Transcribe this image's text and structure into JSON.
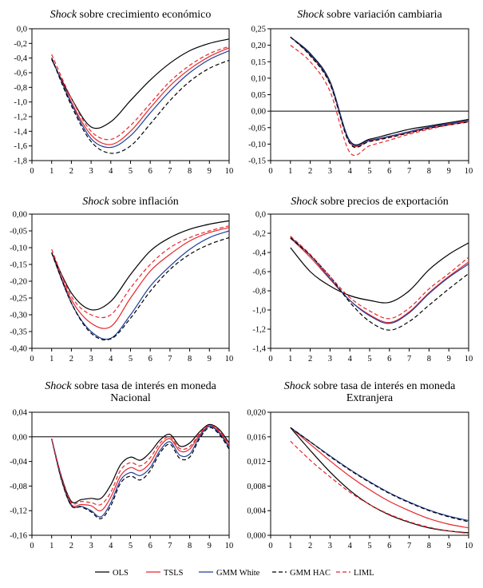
{
  "chart_data": [
    {
      "type": "line",
      "title_italic": "Shock",
      "title_rest": " sobre crecimiento económico",
      "title_line2": "",
      "x": [
        1,
        2,
        3,
        4,
        5,
        6,
        7,
        8,
        9,
        10
      ],
      "xticks": [
        "0",
        "1",
        "2",
        "3",
        "4",
        "5",
        "6",
        "7",
        "8",
        "9",
        "10"
      ],
      "xlim": [
        0,
        10
      ],
      "ylim": [
        -1.8,
        0.0
      ],
      "yticks": [
        "0,0",
        "-0,2",
        "-0,4",
        "-0,6",
        "-0,8",
        "-1,0",
        "-1,2",
        "-1,4",
        "-1,6",
        "-1,8"
      ],
      "ytick_values": [
        0,
        -0.2,
        -0.4,
        -0.6,
        -0.8,
        -1.0,
        -1.2,
        -1.4,
        -1.6,
        -1.8
      ],
      "zero_line": false,
      "series": [
        {
          "name": "OLS",
          "values": [
            -0.42,
            -0.95,
            -1.34,
            -1.27,
            -0.98,
            -0.7,
            -0.47,
            -0.3,
            -0.2,
            -0.14
          ]
        },
        {
          "name": "TSLS",
          "values": [
            -0.4,
            -1.0,
            -1.45,
            -1.58,
            -1.4,
            -1.08,
            -0.78,
            -0.55,
            -0.38,
            -0.26
          ]
        },
        {
          "name": "GMM White",
          "values": [
            -0.4,
            -1.02,
            -1.5,
            -1.62,
            -1.46,
            -1.15,
            -0.85,
            -0.6,
            -0.42,
            -0.3
          ]
        },
        {
          "name": "GMM HAC",
          "values": [
            -0.4,
            -1.05,
            -1.54,
            -1.7,
            -1.6,
            -1.3,
            -0.98,
            -0.72,
            -0.54,
            -0.43
          ]
        },
        {
          "name": "LIML",
          "values": [
            -0.35,
            -0.95,
            -1.4,
            -1.51,
            -1.32,
            -1.02,
            -0.72,
            -0.5,
            -0.34,
            -0.24
          ]
        }
      ]
    },
    {
      "type": "line",
      "title_italic": "Shock",
      "title_rest": " sobre variación cambiaria",
      "title_line2": "",
      "x": [
        1,
        2,
        3,
        4,
        5,
        6,
        7,
        8,
        9,
        10
      ],
      "xticks": [
        "0",
        "1",
        "2",
        "3",
        "4",
        "5",
        "6",
        "7",
        "8",
        "9",
        "10"
      ],
      "xlim": [
        0,
        10
      ],
      "ylim": [
        -0.15,
        0.25
      ],
      "yticks": [
        "0,25",
        "0,20",
        "0,15",
        "0,10",
        "0,05",
        "0,00",
        "-0,05",
        "-0,10",
        "-0,15"
      ],
      "ytick_values": [
        0.25,
        0.2,
        0.15,
        0.1,
        0.05,
        0,
        -0.05,
        -0.1,
        -0.15
      ],
      "zero_line": true,
      "series": [
        {
          "name": "OLS",
          "values": [
            0.225,
            0.175,
            0.09,
            -0.09,
            -0.085,
            -0.07,
            -0.055,
            -0.045,
            -0.035,
            -0.025
          ]
        },
        {
          "name": "TSLS",
          "values": [
            0.225,
            0.17,
            0.085,
            -0.095,
            -0.09,
            -0.078,
            -0.065,
            -0.05,
            -0.04,
            -0.03
          ]
        },
        {
          "name": "GMM White",
          "values": [
            0.225,
            0.172,
            0.087,
            -0.092,
            -0.088,
            -0.076,
            -0.062,
            -0.048,
            -0.038,
            -0.028
          ]
        },
        {
          "name": "GMM HAC",
          "values": [
            0.225,
            0.168,
            0.082,
            -0.098,
            -0.092,
            -0.08,
            -0.066,
            -0.052,
            -0.042,
            -0.033
          ]
        },
        {
          "name": "LIML",
          "values": [
            0.2,
            0.15,
            0.06,
            -0.125,
            -0.105,
            -0.088,
            -0.07,
            -0.055,
            -0.042,
            -0.032
          ]
        }
      ]
    },
    {
      "type": "line",
      "title_italic": "Shock",
      "title_rest": " sobre inflación",
      "title_line2": "",
      "x": [
        1,
        2,
        3,
        4,
        5,
        6,
        7,
        8,
        9,
        10
      ],
      "xticks": [
        "0",
        "1",
        "2",
        "3",
        "4",
        "5",
        "6",
        "7",
        "8",
        "9",
        "10"
      ],
      "xlim": [
        0,
        10
      ],
      "ylim": [
        -0.4,
        0.0
      ],
      "yticks": [
        "0,00",
        "-0,05",
        "-0,10",
        "-0,15",
        "-0,20",
        "-0,25",
        "-0,30",
        "-0,35",
        "-0,40"
      ],
      "ytick_values": [
        0,
        -0.05,
        -0.1,
        -0.15,
        -0.2,
        -0.25,
        -0.3,
        -0.35,
        -0.4
      ],
      "zero_line": false,
      "series": [
        {
          "name": "OLS",
          "values": [
            -0.115,
            -0.235,
            -0.285,
            -0.26,
            -0.18,
            -0.11,
            -0.07,
            -0.045,
            -0.03,
            -0.02
          ]
        },
        {
          "name": "TSLS",
          "values": [
            -0.115,
            -0.255,
            -0.325,
            -0.335,
            -0.25,
            -0.17,
            -0.12,
            -0.08,
            -0.055,
            -0.04
          ]
        },
        {
          "name": "GMM White",
          "values": [
            -0.115,
            -0.265,
            -0.35,
            -0.37,
            -0.3,
            -0.215,
            -0.155,
            -0.105,
            -0.07,
            -0.05
          ]
        },
        {
          "name": "GMM HAC",
          "values": [
            -0.115,
            -0.265,
            -0.355,
            -0.372,
            -0.31,
            -0.23,
            -0.165,
            -0.12,
            -0.09,
            -0.07
          ]
        },
        {
          "name": "LIML",
          "values": [
            -0.105,
            -0.245,
            -0.3,
            -0.3,
            -0.22,
            -0.15,
            -0.1,
            -0.07,
            -0.05,
            -0.035
          ]
        }
      ]
    },
    {
      "type": "line",
      "title_italic": "Shock",
      "title_rest": " sobre precios de exportación",
      "title_line2": "",
      "x": [
        1,
        2,
        3,
        4,
        5,
        6,
        7,
        8,
        9,
        10
      ],
      "xticks": [
        "0",
        "1",
        "2",
        "3",
        "4",
        "5",
        "6",
        "7",
        "8",
        "9",
        "10"
      ],
      "xlim": [
        0,
        10
      ],
      "ylim": [
        -1.4,
        0.0
      ],
      "yticks": [
        "0,0",
        "-0,2",
        "-0,4",
        "-0,6",
        "-0,8",
        "-1,0",
        "-1,2",
        "-1,4"
      ],
      "ytick_values": [
        0,
        -0.2,
        -0.4,
        -0.6,
        -0.8,
        -1.0,
        -1.2,
        -1.4
      ],
      "zero_line": false,
      "series": [
        {
          "name": "OLS",
          "values": [
            -0.35,
            -0.6,
            -0.75,
            -0.85,
            -0.9,
            -0.92,
            -0.8,
            -0.58,
            -0.42,
            -0.3
          ]
        },
        {
          "name": "TSLS",
          "values": [
            -0.25,
            -0.45,
            -0.68,
            -0.9,
            -1.05,
            -1.13,
            -1.02,
            -0.82,
            -0.65,
            -0.5
          ]
        },
        {
          "name": "GMM White",
          "values": [
            -0.24,
            -0.43,
            -0.67,
            -0.9,
            -1.06,
            -1.14,
            -1.03,
            -0.83,
            -0.66,
            -0.52
          ]
        },
        {
          "name": "GMM HAC",
          "values": [
            -0.25,
            -0.43,
            -0.65,
            -0.92,
            -1.12,
            -1.21,
            -1.12,
            -0.95,
            -0.78,
            -0.62
          ]
        },
        {
          "name": "LIML",
          "values": [
            -0.23,
            -0.42,
            -0.65,
            -0.87,
            -1.01,
            -1.09,
            -0.98,
            -0.78,
            -0.62,
            -0.45
          ]
        }
      ]
    },
    {
      "type": "line",
      "title_italic": "Shock",
      "title_rest": " sobre tasa de interés en moneda",
      "title_line2": "Nacional",
      "x": [
        1,
        1.5,
        2,
        2.5,
        3,
        3.5,
        4,
        4.5,
        5,
        5.5,
        6,
        6.5,
        7,
        7.5,
        8,
        8.5,
        9,
        9.5,
        10
      ],
      "xticks": [
        "0",
        "1",
        "2",
        "3",
        "4",
        "5",
        "6",
        "7",
        "8",
        "9",
        "10"
      ],
      "xlim": [
        0,
        10
      ],
      "ylim": [
        -0.16,
        0.04
      ],
      "yticks": [
        "0,04",
        "0,00",
        "-0,04",
        "-0,08",
        "-0,12",
        "-0,16"
      ],
      "ytick_values": [
        0.04,
        0,
        -0.04,
        -0.08,
        -0.12,
        -0.16
      ],
      "zero_line": true,
      "series": [
        {
          "name": "OLS",
          "values": [
            -0.003,
            -0.065,
            -0.105,
            -0.102,
            -0.1,
            -0.1,
            -0.078,
            -0.045,
            -0.033,
            -0.038,
            -0.025,
            -0.005,
            0.004,
            -0.015,
            -0.01,
            0.008,
            0.02,
            0.012,
            -0.01
          ]
        },
        {
          "name": "TSLS",
          "values": [
            -0.003,
            -0.068,
            -0.11,
            -0.11,
            -0.112,
            -0.12,
            -0.098,
            -0.063,
            -0.05,
            -0.055,
            -0.042,
            -0.015,
            -0.003,
            -0.023,
            -0.02,
            0.003,
            0.018,
            0.008,
            -0.015
          ]
        },
        {
          "name": "GMM White",
          "values": [
            -0.003,
            -0.07,
            -0.112,
            -0.113,
            -0.12,
            -0.13,
            -0.107,
            -0.07,
            -0.058,
            -0.063,
            -0.05,
            -0.022,
            -0.008,
            -0.03,
            -0.028,
            0.0,
            0.017,
            0.006,
            -0.017
          ]
        },
        {
          "name": "GMM HAC",
          "values": [
            -0.003,
            -0.07,
            -0.112,
            -0.114,
            -0.122,
            -0.133,
            -0.112,
            -0.075,
            -0.064,
            -0.07,
            -0.055,
            -0.026,
            -0.012,
            -0.035,
            -0.033,
            -0.003,
            0.015,
            0.004,
            -0.02
          ]
        },
        {
          "name": "LIML",
          "values": [
            -0.003,
            -0.066,
            -0.107,
            -0.105,
            -0.107,
            -0.11,
            -0.09,
            -0.054,
            -0.042,
            -0.047,
            -0.034,
            -0.01,
            0.0,
            -0.019,
            -0.016,
            0.005,
            0.019,
            0.01,
            -0.012
          ]
        }
      ]
    },
    {
      "type": "line",
      "title_italic": "Shock",
      "title_rest": " sobre tasa de interés en moneda",
      "title_line2": "Extranjera",
      "x": [
        1,
        2,
        3,
        4,
        5,
        6,
        7,
        8,
        9,
        10
      ],
      "xticks": [
        "0",
        "1",
        "2",
        "3",
        "4",
        "5",
        "6",
        "7",
        "8",
        "9",
        "10"
      ],
      "xlim": [
        0,
        10
      ],
      "ylim": [
        0.0,
        0.02
      ],
      "yticks": [
        "0,020",
        "0,016",
        "0,012",
        "0,008",
        "0,004",
        "0,000"
      ],
      "ytick_values": [
        0.02,
        0.016,
        0.012,
        0.008,
        0.004,
        0
      ],
      "zero_line": false,
      "series": [
        {
          "name": "OLS",
          "values": [
            0.0175,
            0.0138,
            0.0103,
            0.0073,
            0.005,
            0.0033,
            0.0021,
            0.0012,
            0.0007,
            0.0004
          ]
        },
        {
          "name": "TSLS",
          "values": [
            0.0175,
            0.0148,
            0.0121,
            0.0096,
            0.0074,
            0.0055,
            0.004,
            0.0027,
            0.0018,
            0.0012
          ]
        },
        {
          "name": "GMM White",
          "values": [
            0.0175,
            0.0152,
            0.0129,
            0.0107,
            0.0087,
            0.0069,
            0.0054,
            0.0041,
            0.0031,
            0.0024
          ]
        },
        {
          "name": "GMM HAC",
          "values": [
            0.0175,
            0.0152,
            0.0128,
            0.0106,
            0.0086,
            0.0068,
            0.0053,
            0.004,
            0.003,
            0.0022
          ]
        },
        {
          "name": "LIML",
          "values": [
            0.0153,
            0.0122,
            0.0095,
            0.007,
            0.005,
            0.0034,
            0.0022,
            0.0013,
            0.0007,
            0.0003
          ]
        }
      ]
    }
  ],
  "legend": {
    "items": [
      {
        "name": "OLS",
        "color": "#000000",
        "dash": "solid"
      },
      {
        "name": "TSLS",
        "color": "#e8262b",
        "dash": "solid"
      },
      {
        "name": "GMM White",
        "color": "#1f3f9a",
        "dash": "solid"
      },
      {
        "name": "GMM HAC",
        "color": "#000000",
        "dash": "dashed"
      },
      {
        "name": "LIML",
        "color": "#e8262b",
        "dash": "dashed"
      }
    ]
  }
}
